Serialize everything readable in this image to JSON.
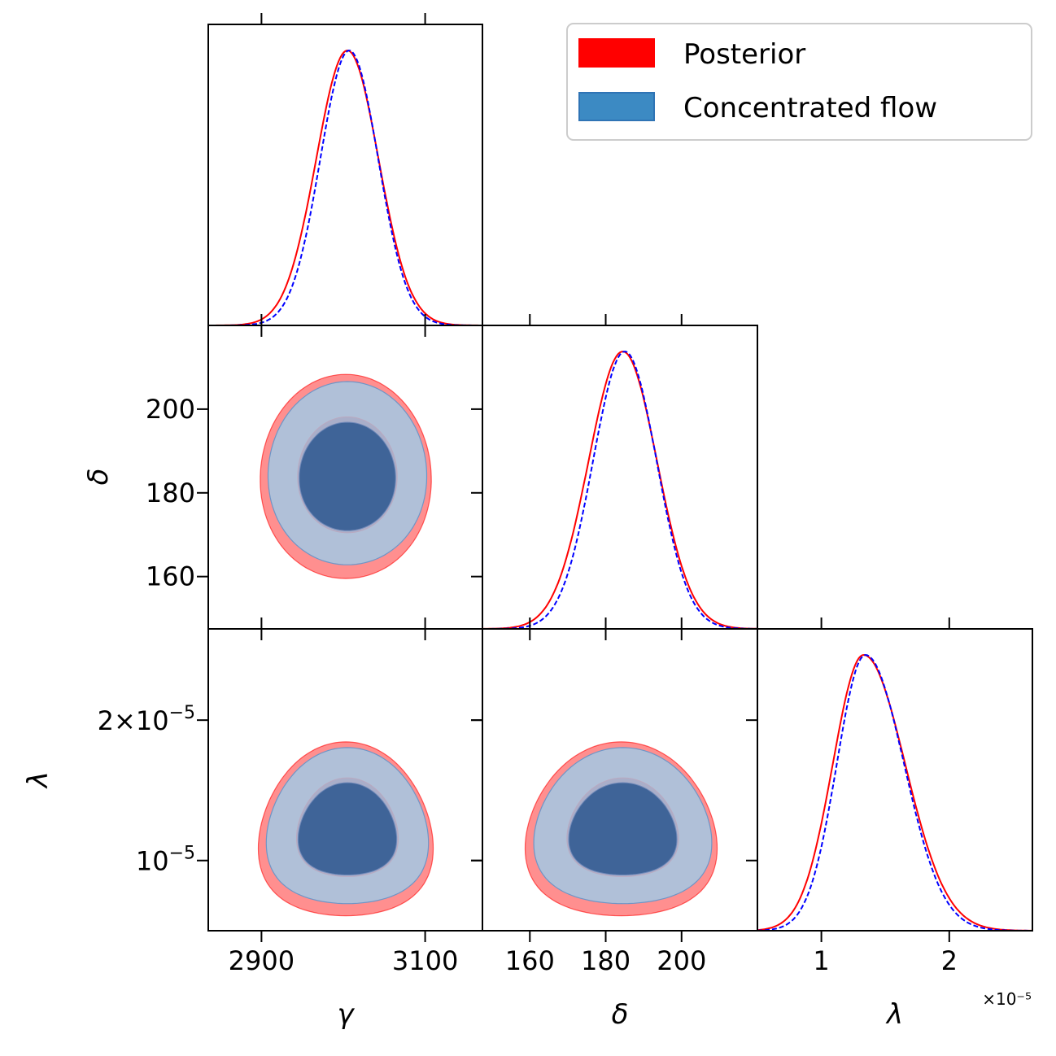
{
  "legend": {
    "entries": [
      {
        "label": "Posterior",
        "color": "#ff0000"
      },
      {
        "label": "Concentrated flow",
        "color": "#3c8ac3"
      }
    ],
    "placement": "top-right"
  },
  "colors": {
    "posterior_line": "#ff0000",
    "posterior_fill": "#ff8f8f",
    "flow_line": "#0000ff",
    "flow_outer_fill": "#b0c0d8",
    "flow_inner_fill": "#3f6498"
  },
  "chart_data": {
    "type": "corner",
    "parameters": [
      {
        "symbol": "γ",
        "xlim": [
          2835,
          3170
        ],
        "ticks": [
          2900,
          3100
        ],
        "tick_labels": [
          "2900",
          "3100"
        ],
        "mean": 3005,
        "sd": 38
      },
      {
        "symbol": "δ",
        "xlim": [
          147.5,
          220.0
        ],
        "ticks": [
          160,
          180,
          200
        ],
        "tick_labels": [
          "160",
          "180",
          "200"
        ],
        "mean": 184.5,
        "sd": 9
      },
      {
        "symbol": "λ",
        "xlim": [
          5e-06,
          2.65e-05
        ],
        "ticks": [
          1e-05,
          2e-05
        ],
        "tick_labels": [
          "1",
          "2"
        ],
        "mean": 1.33e-05,
        "sd": 2.4e-06,
        "offset_label": "×10⁻⁵"
      }
    ],
    "y_tick_labels": {
      "delta": [
        "200",
        "180",
        "160"
      ],
      "lambda": [
        {
          "mantissa": "2×10",
          "exp": "−5"
        },
        {
          "mantissa": "10",
          "exp": "−5"
        }
      ]
    },
    "series": [
      {
        "name": "Posterior",
        "line": "solid",
        "color": "#ff0000"
      },
      {
        "name": "Concentrated flow",
        "line": "dashed",
        "color": "#0000ff"
      }
    ],
    "panels": [
      {
        "row": 0,
        "col": 0,
        "kind": "1d",
        "param": "γ",
        "peak": 3005
      },
      {
        "row": 1,
        "col": 0,
        "kind": "2d",
        "x": "γ",
        "y": "δ",
        "center": [
          3005,
          184.5
        ]
      },
      {
        "row": 1,
        "col": 1,
        "kind": "1d",
        "param": "δ",
        "peak": 184.5
      },
      {
        "row": 2,
        "col": 0,
        "kind": "2d",
        "x": "γ",
        "y": "λ",
        "center": [
          3005,
          1.33e-05
        ]
      },
      {
        "row": 2,
        "col": 1,
        "kind": "2d",
        "x": "δ",
        "y": "λ",
        "center": [
          184.5,
          1.33e-05
        ]
      },
      {
        "row": 2,
        "col": 2,
        "kind": "1d",
        "param": "λ",
        "peak": 1.33e-05
      }
    ]
  }
}
